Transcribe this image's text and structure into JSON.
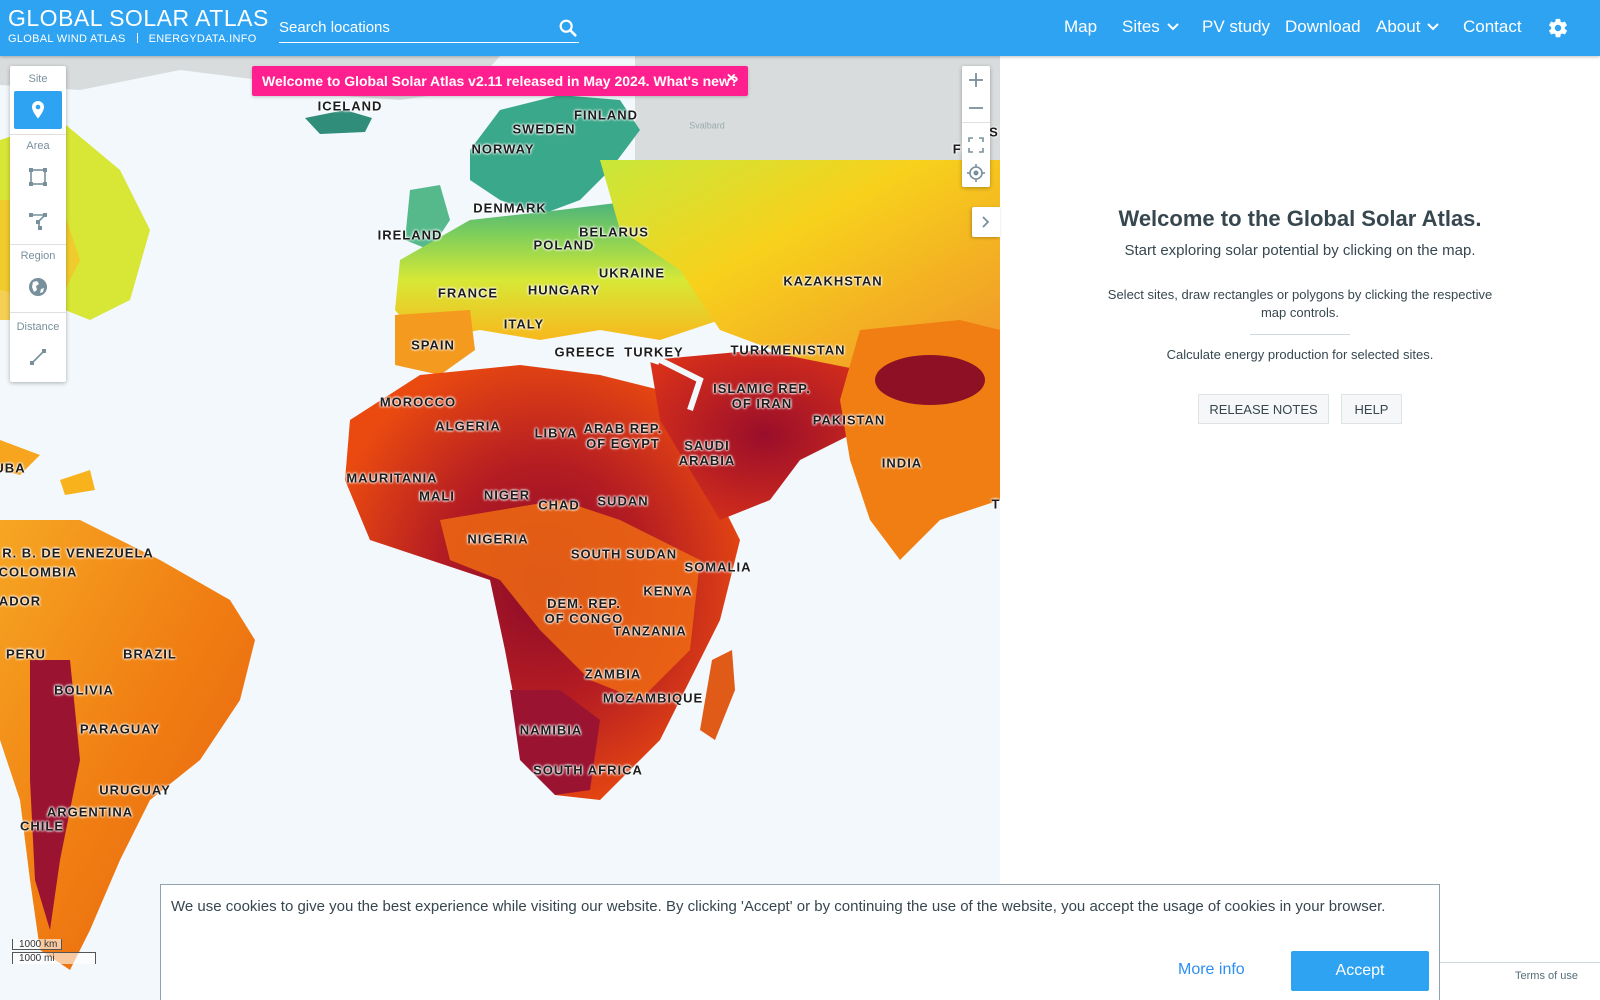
{
  "header": {
    "logo_title": "GLOBAL SOLAR ATLAS",
    "logo_link1": "GLOBAL WIND ATLAS",
    "logo_link2": "ENERGYDATA.INFO",
    "search_placeholder": "Search locations",
    "nav": {
      "map": "Map",
      "sites": "Sites",
      "pv_study": "PV study",
      "download": "Download",
      "about": "About",
      "contact": "Contact"
    },
    "icons": [
      "search-icon",
      "chevron-down-icon",
      "gear-icon"
    ]
  },
  "toolbar": {
    "site_label": "Site",
    "area_label": "Area",
    "region_label": "Region",
    "distance_label": "Distance"
  },
  "banner": {
    "text": "Welcome to Global Solar Atlas v2.11 released in May 2024. What's new?",
    "close": "×"
  },
  "map": {
    "attribution_label": "Svalbard",
    "scale_km": "1000 km",
    "scale_mi": "1000 mi",
    "country_labels": {
      "iceland": "ICELAND",
      "finland": "FINLAND",
      "sweden": "SWEDEN",
      "norway": "NORWAY",
      "denmark": "DENMARK",
      "ireland": "IRELAND",
      "belarus": "BELARUS",
      "poland": "POLAND",
      "ukraine": "UKRAINE",
      "kazakhstan": "KAZAKHSTAN",
      "france": "FRANCE",
      "hungary": "HUNGARY",
      "italy": "ITALY",
      "spain": "SPAIN",
      "greece": "GREECE",
      "turkey": "TURKEY",
      "turkmenistan": "TURKMENISTAN",
      "iran": "ISLAMIC REP.\nOF IRAN",
      "morocco": "MOROCCO",
      "algeria": "ALGERIA",
      "libya": "LIBYA",
      "egypt": "ARAB REP.\nOF EGYPT",
      "saudi": "SAUDI\nARABIA",
      "pakistan": "PAKISTAN",
      "india": "INDIA",
      "mauritania": "MAURITANIA",
      "mali": "MALI",
      "niger": "NIGER",
      "chad": "CHAD",
      "sudan": "SUDAN",
      "nigeria": "NIGERIA",
      "south_sudan": "SOUTH SUDAN",
      "somalia": "SOMALIA",
      "venezuela": "R. B. DE VENEZUELA",
      "colombia": "COLOMBIA",
      "ecuador": "ADOR",
      "kenya": "KENYA",
      "drc": "DEM. REP.\nOF CONGO",
      "tanzania": "TANZANIA",
      "peru": "PERU",
      "brazil": "BRAZIL",
      "zambia": "ZAMBIA",
      "bolivia": "BOLIVIA",
      "mozambique": "MOZAMBIQUE",
      "paraguay": "PARAGUAY",
      "namibia": "NAMIBIA",
      "south_africa": "SOUTH AFRICA",
      "uruguay": "URUGUAY",
      "argentina": "ARGENTINA",
      "chile": "CHILE",
      "cuba": "UBA",
      "edge_s": "S",
      "edge_fe": "FE",
      "edge_rc": "R",
      "edge_t": "T"
    }
  },
  "panel": {
    "title": "Welcome to the Global Solar Atlas.",
    "subtitle": "Start exploring solar potential by clicking on the map.",
    "info": "Select sites, draw rectangles or polygons by clicking the respective map controls.",
    "calc": "Calculate energy production for selected sites.",
    "release_notes": "RELEASE NOTES",
    "help": "HELP",
    "terms": "Terms of use"
  },
  "cookie": {
    "message": "We use cookies to give you the best experience while visiting our website. By clicking 'Accept' or by continuing the use of the website, you accept the usage of cookies in your browser.",
    "more_info": "More info",
    "accept": "Accept"
  },
  "colors": {
    "header": "#2ea3f2",
    "banner": "#ff1f8e",
    "hot": "#8b0a2a",
    "warm": "#e8410f",
    "mild": "#f7b21c",
    "cool": "#c9e83a",
    "cold": "#3aa88a"
  }
}
